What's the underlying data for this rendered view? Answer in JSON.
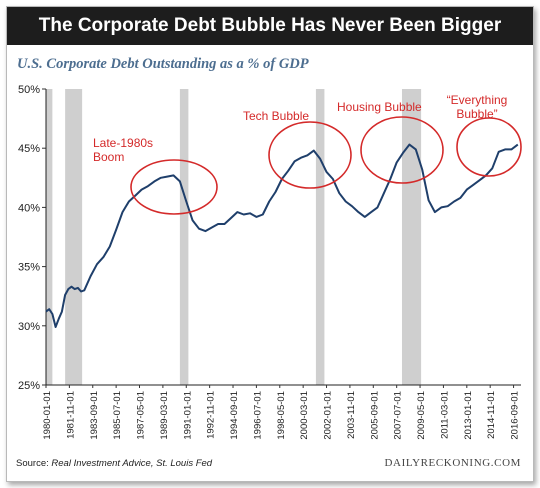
{
  "header": {
    "title": "The Corporate Debt Bubble Has Never Been Bigger"
  },
  "subtitle": "U.S. Corporate Debt Outstanding as a % of GDP",
  "footer": {
    "source_label": "Source:",
    "source_text": "Real Investment Advice, St. Louis Fed",
    "brand": "DAILYRECKONING.COM"
  },
  "colors": {
    "header_bg": "#1d1d1d",
    "line": "#1f3f6b",
    "annotation": "#d42a2a",
    "recession": "#cfcfcf",
    "subtitle": "#4d6e90"
  },
  "chart_data": {
    "type": "line",
    "ylim": [
      25,
      50
    ],
    "y_ticks": [
      "25%",
      "30%",
      "35%",
      "40%",
      "45%",
      "50%"
    ],
    "x_tick_labels": [
      "1980-01-01",
      "1981-11-01",
      "1983-09-01",
      "1985-07-01",
      "1987-05-01",
      "1989-03-01",
      "1991-01-01",
      "1992-11-01",
      "1994-09-01",
      "1996-07-01",
      "1998-05-01",
      "2000-03-01",
      "2002-01-01",
      "2003-11-01",
      "2005-09-01",
      "2007-07-01",
      "2009-05-01",
      "2011-03-01",
      "2013-01-01",
      "2014-11-01",
      "2016-09-01"
    ],
    "recessions": [
      [
        "1980-01",
        "1980-07"
      ],
      [
        "1981-07",
        "1982-11"
      ],
      [
        "1990-07",
        "1991-03"
      ],
      [
        "2001-03",
        "2001-11"
      ],
      [
        "2007-12",
        "2009-06"
      ]
    ],
    "series": [
      {
        "x": [
          "1980-01",
          "1980-04",
          "1980-07",
          "1980-10",
          "1981-01",
          "1981-04",
          "1981-07",
          "1981-10",
          "1982-01",
          "1982-04",
          "1982-07",
          "1982-10",
          "1983-01",
          "1983-07",
          "1984-01",
          "1984-07",
          "1985-01",
          "1985-07",
          "1986-01",
          "1986-07",
          "1987-01",
          "1987-07",
          "1988-01",
          "1988-07",
          "1989-01",
          "1989-07",
          "1990-01",
          "1990-07",
          "1991-01",
          "1991-07",
          "1992-01",
          "1992-07",
          "1993-01",
          "1993-07",
          "1994-01",
          "1994-07",
          "1995-01",
          "1995-07",
          "1996-01",
          "1996-07",
          "1997-01",
          "1997-07",
          "1998-01",
          "1998-07",
          "1999-01",
          "1999-07",
          "2000-01",
          "2000-07",
          "2001-01",
          "2001-07",
          "2002-01",
          "2002-07",
          "2003-01",
          "2003-07",
          "2004-01",
          "2004-07",
          "2005-01",
          "2005-07",
          "2006-01",
          "2006-07",
          "2007-01",
          "2007-07",
          "2008-01",
          "2008-07",
          "2009-01",
          "2009-07",
          "2010-01",
          "2010-07",
          "2011-01",
          "2011-07",
          "2012-01",
          "2012-07",
          "2013-01",
          "2013-07",
          "2014-01",
          "2014-07",
          "2015-01",
          "2015-07",
          "2016-01",
          "2016-07",
          "2017-01"
        ],
        "values": [
          31.2,
          31.4,
          31.0,
          29.9,
          30.6,
          31.2,
          32.6,
          33.1,
          33.3,
          33.1,
          33.2,
          32.9,
          33.0,
          34.2,
          35.2,
          35.8,
          36.7,
          38.1,
          39.6,
          40.5,
          41.0,
          41.5,
          41.8,
          42.2,
          42.5,
          42.6,
          42.7,
          42.2,
          40.5,
          38.9,
          38.2,
          38.0,
          38.3,
          38.6,
          38.6,
          39.1,
          39.6,
          39.4,
          39.5,
          39.2,
          39.4,
          40.5,
          41.3,
          42.4,
          43.1,
          43.9,
          44.2,
          44.4,
          44.8,
          44.1,
          43.0,
          42.4,
          41.2,
          40.5,
          40.1,
          39.6,
          39.2,
          39.6,
          40.0,
          41.2,
          42.4,
          43.8,
          44.6,
          45.3,
          44.9,
          43.2,
          40.6,
          39.6,
          40.0,
          40.1,
          40.5,
          40.8,
          41.5,
          41.9,
          42.3,
          42.7,
          43.3,
          44.7,
          44.9,
          44.9,
          45.3
        ]
      }
    ],
    "annotations": [
      {
        "text": "Late-1980s Boom",
        "lines": [
          "Late-1980s",
          "Boom"
        ]
      },
      {
        "text": "Tech Bubble",
        "lines": [
          "Tech Bubble"
        ]
      },
      {
        "text": "Housing Bubble",
        "lines": [
          "Housing Bubble"
        ]
      },
      {
        "text": "“Everything Bubble”",
        "lines": [
          "“Everything",
          "Bubble”"
        ]
      }
    ]
  }
}
